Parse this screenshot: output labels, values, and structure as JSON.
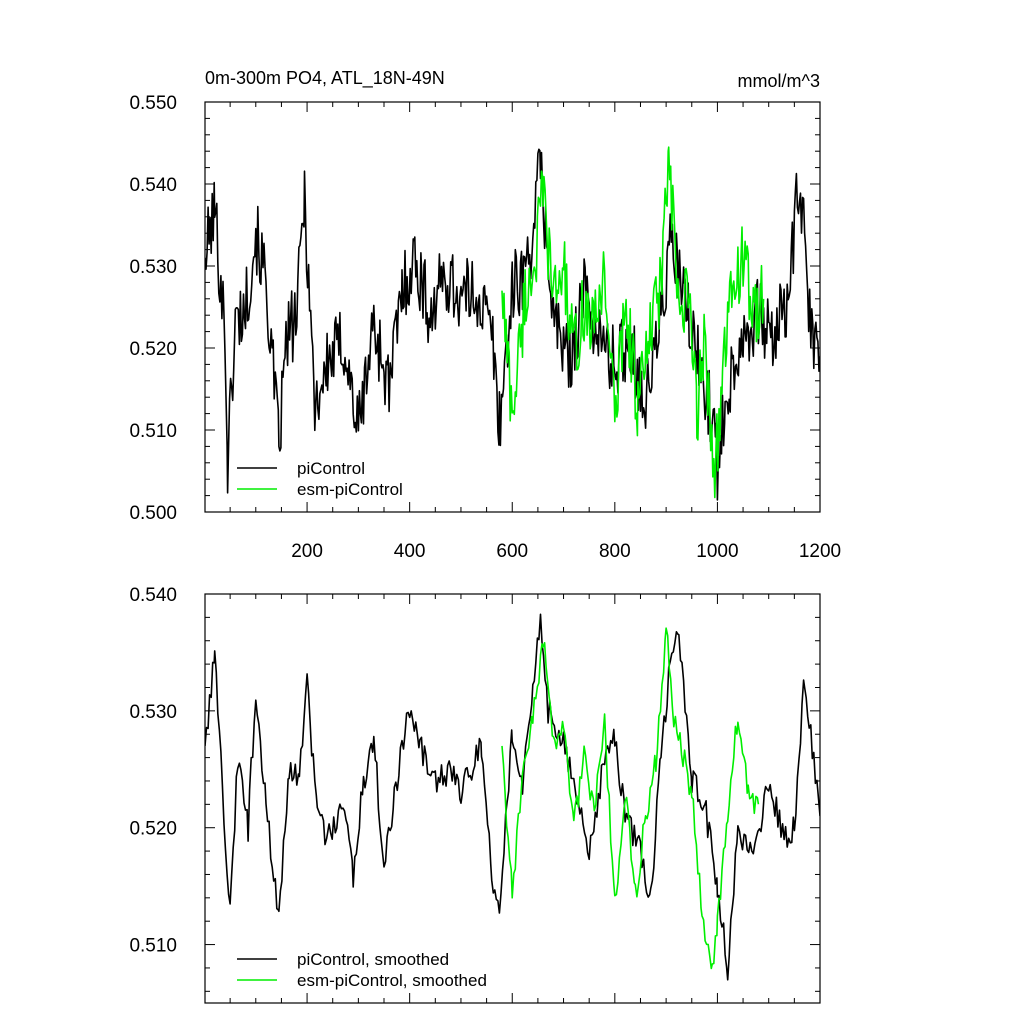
{
  "figure": {
    "title_left": "0m-300m PO4, ATL_18N-49N",
    "title_right": "mmol/m^3"
  },
  "colors": {
    "picontrol": "#000000",
    "esm": "#00ee00",
    "axis": "#000000"
  },
  "chart_data": [
    {
      "type": "line",
      "panel": "top",
      "title": "0m-300m PO4, ATL_18N-49N",
      "units": "mmol/m^3",
      "xlim": [
        1,
        1200
      ],
      "ylim": [
        0.5,
        0.55
      ],
      "xticks": [
        200,
        400,
        600,
        800,
        1000,
        1200
      ],
      "xtick_labels": [
        "200",
        "400",
        "600",
        "800",
        "1000",
        "1200"
      ],
      "yticks": [
        0.5,
        0.51,
        0.52,
        0.53,
        0.54,
        0.55
      ],
      "ytick_labels": [
        "0.500",
        "0.510",
        "0.520",
        "0.530",
        "0.540",
        "0.550"
      ],
      "legend": [
        "piControl",
        "esm-piControl"
      ],
      "legend_position": "bottom-left",
      "series": [
        {
          "name": "piControl",
          "color": "#000000",
          "x": [
            1,
            20,
            40,
            45,
            60,
            80,
            100,
            120,
            145,
            160,
            180,
            195,
            215,
            240,
            270,
            300,
            330,
            360,
            385,
            410,
            440,
            470,
            500,
            530,
            560,
            575,
            600,
            630,
            655,
            680,
            710,
            740,
            770,
            800,
            830,
            860,
            890,
            910,
            935,
            960,
            990,
            1000,
            1015,
            1050,
            1080,
            1110,
            1140,
            1160,
            1180,
            1200
          ],
          "values": [
            0.531,
            0.537,
            0.522,
            0.506,
            0.523,
            0.525,
            0.534,
            0.528,
            0.508,
            0.521,
            0.524,
            0.539,
            0.513,
            0.518,
            0.521,
            0.51,
            0.523,
            0.515,
            0.527,
            0.531,
            0.524,
            0.529,
            0.526,
            0.527,
            0.522,
            0.511,
            0.527,
            0.53,
            0.542,
            0.524,
            0.518,
            0.527,
            0.521,
            0.518,
            0.521,
            0.513,
            0.524,
            0.533,
            0.526,
            0.519,
            0.512,
            0.505,
            0.514,
            0.522,
            0.524,
            0.521,
            0.527,
            0.541,
            0.523,
            0.519
          ]
        },
        {
          "name": "esm-piControl",
          "color": "#00ee00",
          "x": [
            580,
            600,
            625,
            645,
            660,
            680,
            700,
            720,
            740,
            760,
            780,
            800,
            820,
            845,
            870,
            890,
            905,
            925,
            945,
            960,
            975,
            995,
            1010,
            1030,
            1050,
            1070,
            1090
          ],
          "values": [
            0.527,
            0.512,
            0.526,
            0.531,
            0.539,
            0.526,
            0.53,
            0.519,
            0.525,
            0.522,
            0.53,
            0.511,
            0.526,
            0.513,
            0.522,
            0.528,
            0.543,
            0.524,
            0.526,
            0.512,
            0.521,
            0.505,
            0.516,
            0.528,
            0.531,
            0.524,
            0.526
          ]
        }
      ]
    },
    {
      "type": "line",
      "panel": "bottom",
      "xlim": [
        1,
        1200
      ],
      "ylim": [
        0.505,
        0.54
      ],
      "yticks": [
        0.51,
        0.52,
        0.53,
        0.54
      ],
      "ytick_labels": [
        "0.510",
        "0.520",
        "0.530",
        "0.540"
      ],
      "legend": [
        "piControl, smoothed",
        "esm-piControl, smoothed"
      ],
      "legend_position": "bottom-left",
      "series": [
        {
          "name": "piControl, smoothed",
          "color": "#000000",
          "x": [
            1,
            20,
            35,
            50,
            65,
            85,
            100,
            120,
            145,
            165,
            185,
            200,
            220,
            240,
            270,
            290,
            310,
            330,
            350,
            370,
            400,
            420,
            450,
            480,
            500,
            540,
            560,
            575,
            600,
            620,
            640,
            655,
            670,
            700,
            720,
            750,
            780,
            800,
            820,
            850,
            870,
            890,
            905,
            925,
            950,
            975,
            1000,
            1020,
            1040,
            1070,
            1100,
            1130,
            1150,
            1170,
            1200
          ],
          "values": [
            0.527,
            0.535,
            0.523,
            0.513,
            0.526,
            0.52,
            0.532,
            0.522,
            0.512,
            0.525,
            0.524,
            0.532,
            0.521,
            0.519,
            0.522,
            0.516,
            0.524,
            0.528,
            0.516,
            0.523,
            0.53,
            0.527,
            0.524,
            0.525,
            0.523,
            0.527,
            0.516,
            0.513,
            0.528,
            0.524,
            0.532,
            0.538,
            0.53,
            0.527,
            0.524,
            0.518,
            0.526,
            0.528,
            0.521,
            0.518,
            0.514,
            0.526,
            0.533,
            0.537,
            0.524,
            0.522,
            0.515,
            0.508,
            0.52,
            0.517,
            0.524,
            0.519,
            0.52,
            0.533,
            0.521
          ]
        },
        {
          "name": "esm-piControl, smoothed",
          "color": "#00ee00",
          "x": [
            580,
            600,
            620,
            640,
            660,
            680,
            700,
            720,
            740,
            760,
            780,
            800,
            820,
            840,
            860,
            880,
            900,
            915,
            930,
            950,
            970,
            990,
            1000,
            1020,
            1040,
            1060,
            1080
          ],
          "values": [
            0.527,
            0.514,
            0.525,
            0.529,
            0.536,
            0.527,
            0.529,
            0.52,
            0.526,
            0.521,
            0.529,
            0.513,
            0.523,
            0.514,
            0.521,
            0.526,
            0.537,
            0.529,
            0.527,
            0.523,
            0.513,
            0.508,
            0.512,
            0.521,
            0.53,
            0.523,
            0.522
          ]
        }
      ]
    }
  ]
}
